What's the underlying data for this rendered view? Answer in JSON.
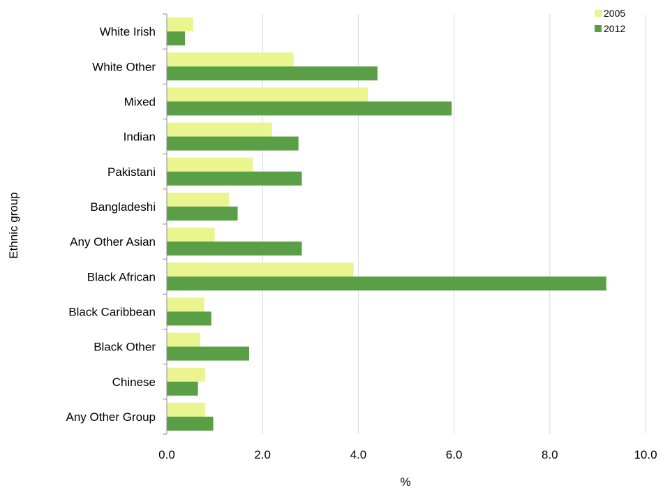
{
  "chart_data": {
    "type": "bar",
    "orientation": "horizontal",
    "categories": [
      "White Irish",
      "White Other",
      "Mixed",
      "Indian",
      "Pakistani",
      "Bangladeshi",
      "Any Other Asian",
      "Black African",
      "Black Caribbean",
      "Black Other",
      "Chinese",
      "Any Other Group"
    ],
    "series": [
      {
        "name": "2005",
        "color": "#ebf590",
        "values": [
          0.55,
          2.65,
          4.2,
          2.2,
          1.8,
          1.3,
          1.0,
          3.9,
          0.78,
          0.7,
          0.8,
          0.8
        ]
      },
      {
        "name": "2012",
        "color": "#5a9e46",
        "values": [
          0.38,
          4.4,
          5.95,
          2.75,
          2.82,
          1.48,
          2.82,
          9.18,
          0.93,
          1.72,
          0.65,
          0.97
        ]
      }
    ],
    "xlim": [
      0,
      10
    ],
    "xticks": [
      "0.0",
      "2.0",
      "4.0",
      "6.0",
      "8.0",
      "10.0"
    ],
    "xlabel": "%",
    "ylabel": "Ethnic group",
    "grid": "vertical",
    "legend_position": "top-right"
  }
}
